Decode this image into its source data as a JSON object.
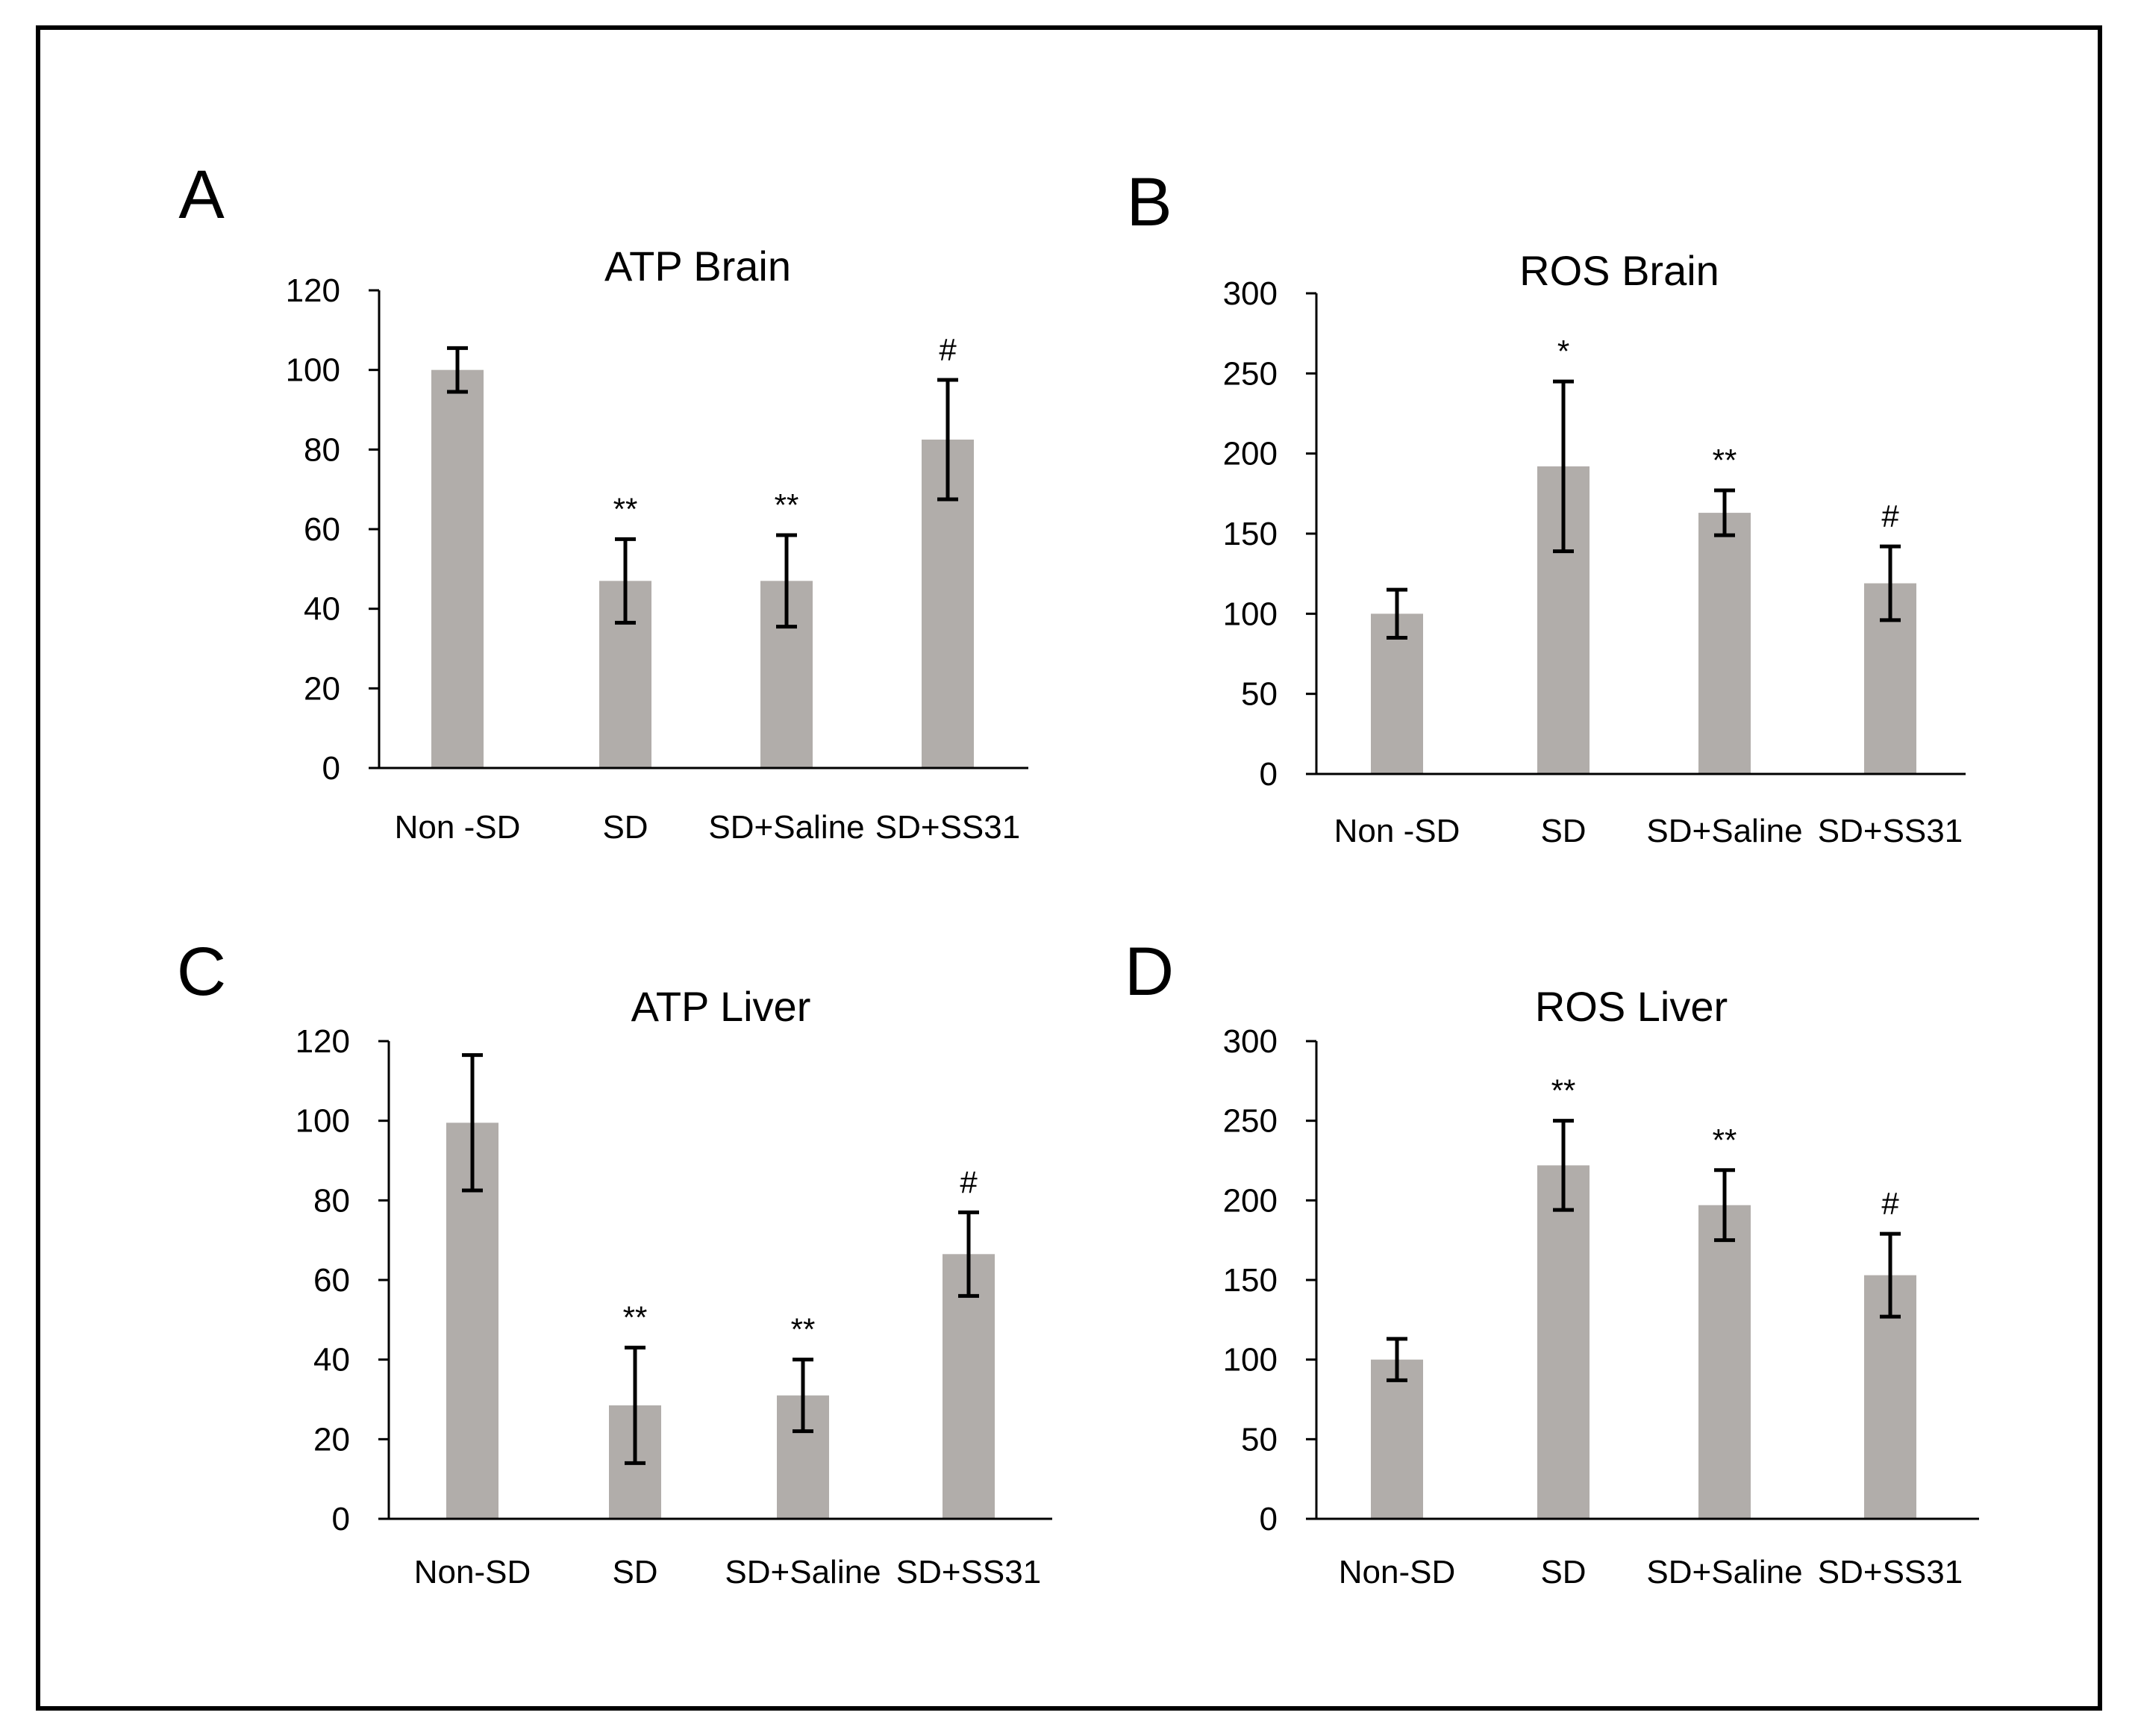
{
  "figure": {
    "panel_letters": [
      "A",
      "B",
      "C",
      "D"
    ]
  },
  "chart_data": [
    {
      "type": "bar",
      "panel": "A",
      "title": "ATP Brain",
      "categories": [
        "Non -SD",
        "SD",
        "SD+Saline",
        "SD+SS31"
      ],
      "values": [
        100,
        47,
        47,
        82.5
      ],
      "error": [
        5.5,
        10.5,
        11.5,
        15
      ],
      "significance": [
        "",
        "**",
        "**",
        "#"
      ],
      "ylim": [
        0,
        120
      ],
      "yticks": [
        0,
        20,
        40,
        60,
        80,
        100,
        120
      ],
      "bar_color": "#b1adaa",
      "grid": false
    },
    {
      "type": "bar",
      "panel": "B",
      "title": "ROS Brain",
      "categories": [
        "Non -SD",
        "SD",
        "SD+Saline",
        "SD+SS31"
      ],
      "values": [
        100,
        192,
        163,
        119
      ],
      "error": [
        15,
        53,
        14,
        23
      ],
      "significance": [
        "",
        "*",
        "**",
        "#"
      ],
      "ylim": [
        0,
        300
      ],
      "yticks": [
        0,
        50,
        100,
        150,
        200,
        250,
        300
      ],
      "bar_color": "#b1adaa",
      "grid": false
    },
    {
      "type": "bar",
      "panel": "C",
      "title": "ATP Liver",
      "categories": [
        "Non-SD",
        "SD",
        "SD+Saline",
        "SD+SS31"
      ],
      "values": [
        99.5,
        28.5,
        31,
        66.5
      ],
      "error": [
        17,
        14.5,
        9,
        10.5
      ],
      "significance": [
        "",
        "**",
        "**",
        "#"
      ],
      "ylim": [
        0,
        120
      ],
      "yticks": [
        0,
        20,
        40,
        60,
        80,
        100,
        120
      ],
      "bar_color": "#b1adaa",
      "grid": false
    },
    {
      "type": "bar",
      "panel": "D",
      "title": "ROS Liver",
      "categories": [
        "Non-SD",
        "SD",
        "SD+Saline",
        "SD+SS31"
      ],
      "values": [
        100,
        222,
        197,
        153
      ],
      "error": [
        13,
        28,
        22,
        26
      ],
      "significance": [
        "",
        "**",
        "**",
        "#"
      ],
      "ylim": [
        0,
        300
      ],
      "yticks": [
        0,
        50,
        100,
        150,
        200,
        250,
        300
      ],
      "bar_color": "#b1adaa",
      "grid": false
    }
  ]
}
